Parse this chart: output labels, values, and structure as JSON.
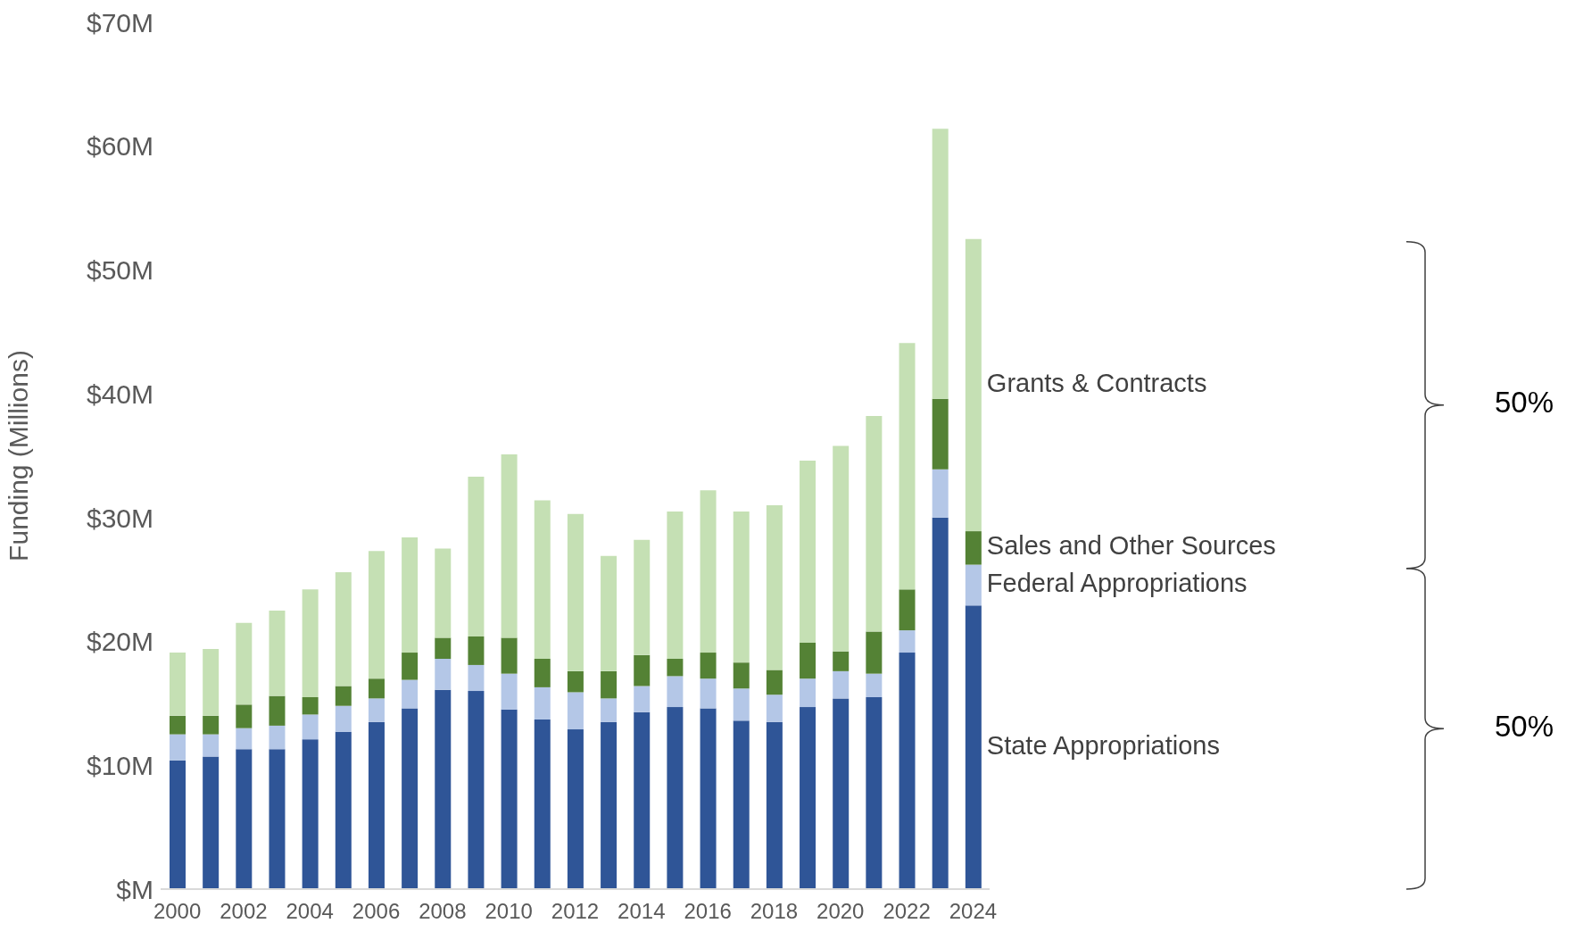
{
  "chart_data": {
    "type": "bar",
    "stacked": true,
    "ylabel": "Funding (Millions)",
    "categories": [
      "2000",
      null,
      "2002",
      null,
      "2004",
      null,
      "2006",
      null,
      "2008",
      null,
      "2010",
      null,
      "2012",
      null,
      "2014",
      null,
      "2016",
      null,
      "2018",
      null,
      "2020",
      null,
      "2022",
      null,
      "2024"
    ],
    "series": [
      {
        "name": "State Appropriations",
        "color": "#2f5597",
        "values": [
          10.4,
          10.7,
          11.3,
          11.3,
          12.1,
          12.7,
          13.5,
          14.6,
          16.1,
          16.0,
          14.5,
          13.7,
          12.9,
          13.5,
          14.3,
          14.7,
          14.6,
          13.6,
          13.5,
          14.7,
          15.4,
          15.5,
          19.1,
          30.0,
          22.9
        ]
      },
      {
        "name": "Federal Appropriations",
        "color": "#b4c7e7",
        "values": [
          2.1,
          1.8,
          1.7,
          1.9,
          2.0,
          2.1,
          1.9,
          2.3,
          2.5,
          2.1,
          2.9,
          2.6,
          3.0,
          1.9,
          2.1,
          2.5,
          2.4,
          2.6,
          2.2,
          2.3,
          2.2,
          1.9,
          1.8,
          3.9,
          3.3
        ]
      },
      {
        "name": "Sales and Other Sources",
        "color": "#548235",
        "values": [
          1.5,
          1.5,
          1.9,
          2.4,
          1.4,
          1.6,
          1.6,
          2.2,
          1.7,
          2.3,
          2.9,
          2.3,
          1.7,
          2.2,
          2.5,
          1.4,
          2.1,
          2.1,
          2.0,
          2.9,
          1.6,
          3.4,
          3.3,
          5.7,
          2.7
        ]
      },
      {
        "name": "Grants & Contracts",
        "color": "#c5e0b4",
        "values": [
          5.1,
          5.4,
          6.6,
          6.9,
          8.7,
          9.2,
          10.3,
          9.3,
          7.2,
          12.9,
          14.8,
          12.8,
          12.7,
          9.3,
          9.3,
          11.9,
          13.1,
          12.2,
          13.3,
          14.7,
          16.6,
          17.4,
          19.9,
          21.8,
          23.6
        ]
      }
    ],
    "ylim": [
      0,
      70
    ],
    "yticks": [
      {
        "value": 0,
        "label": "$M"
      },
      {
        "value": 10,
        "label": "$10M"
      },
      {
        "value": 20,
        "label": "$20M"
      },
      {
        "value": 30,
        "label": "$30M"
      },
      {
        "value": 40,
        "label": "$40M"
      },
      {
        "value": 50,
        "label": "$50M"
      },
      {
        "value": 60,
        "label": "$60M"
      },
      {
        "value": 70,
        "label": "$70M"
      }
    ],
    "grid": false,
    "annotations": [
      "50%",
      "50%"
    ]
  }
}
